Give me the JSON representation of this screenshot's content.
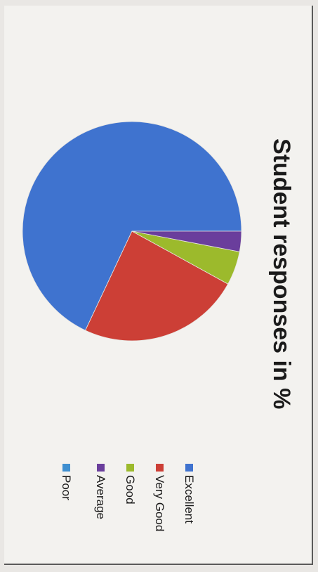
{
  "chart_data": {
    "type": "pie",
    "title": "Student responses in %",
    "categories": [
      "Excellent",
      "Very Good",
      "Good",
      "Average",
      "Poor"
    ],
    "values": [
      68,
      24,
      5,
      3,
      0
    ],
    "colors": [
      "#3f73cf",
      "#cc3f36",
      "#9cba2c",
      "#6a3e9c",
      "#3f8fd0"
    ],
    "legend_position": "bottom"
  }
}
